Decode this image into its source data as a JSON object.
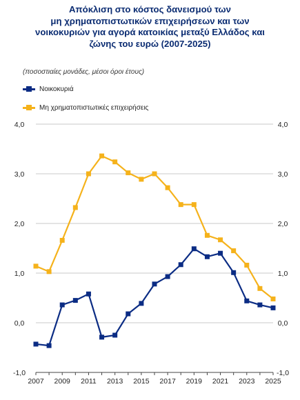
{
  "title_lines": [
    "Απόκλιση στο κόστος δανεισμού των",
    "μη χρηματοπιστωτικών επιχειρήσεων και των",
    "νοικοκυριών για αγορά κατοικίας μεταξύ Ελλάδος και",
    "ζώνης του ευρώ (2007-2025)"
  ],
  "subtitle": "(ποσοστιαίες μονάδες, μέσοι όροι έτους)",
  "colors": {
    "households": "#0b2c84",
    "nfc": "#f5b21b",
    "grid": "#c8c8c8"
  },
  "chart_data": {
    "type": "line",
    "title": "Απόκλιση στο κόστος δανεισμού των μη χρηματοπιστωτικών επιχειρήσεων και των νοικοκυριών για αγορά κατοικίας μεταξύ Ελλάδος και ζώνης του ευρώ (2007-2025)",
    "x": [
      2007,
      2008,
      2009,
      2010,
      2011,
      2012,
      2013,
      2014,
      2015,
      2016,
      2017,
      2018,
      2019,
      2020,
      2021,
      2022,
      2023,
      2024,
      2025
    ],
    "series": [
      {
        "name": "Νοικοκυριά",
        "color": "#0b2c84",
        "values": [
          -0.43,
          -0.46,
          0.36,
          0.45,
          0.58,
          -0.29,
          -0.25,
          0.18,
          0.39,
          0.78,
          0.93,
          1.17,
          1.49,
          1.33,
          1.4,
          1.01,
          0.44,
          0.36,
          0.3
        ]
      },
      {
        "name": "Μη χρηματοπιστωτικές επιχειρήσεις",
        "color": "#f5b21b",
        "values": [
          1.14,
          1.03,
          1.66,
          2.32,
          3.0,
          3.36,
          3.24,
          3.02,
          2.89,
          3.0,
          2.72,
          2.38,
          2.38,
          1.76,
          1.67,
          1.45,
          1.16,
          0.69,
          0.48
        ]
      }
    ],
    "ylim": [
      -1.0,
      4.0
    ],
    "yticks": [
      "-1,0",
      "0,0",
      "1,0",
      "2,0",
      "3,0",
      "4,0"
    ],
    "xticks": [
      "2007",
      "2009",
      "2011",
      "2013",
      "2015",
      "2017",
      "2019",
      "2021",
      "2023",
      "2025"
    ],
    "grid": true,
    "legend": "top-left"
  }
}
